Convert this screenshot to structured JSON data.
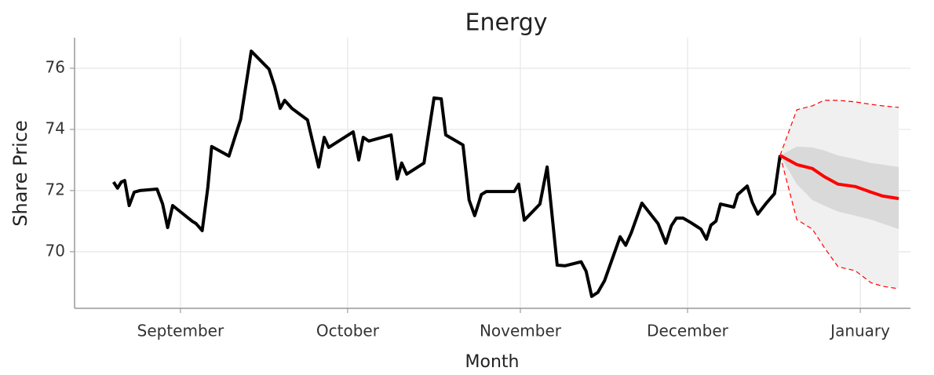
{
  "chart_data": {
    "type": "line",
    "title": "Energy",
    "x_label": "Month",
    "y_label": "Share Price",
    "xlim": [
      -19,
      131
    ],
    "ylim": [
      68.15,
      77
    ],
    "xticks": [
      {
        "value": 0,
        "label": "September"
      },
      {
        "value": 30,
        "label": "October"
      },
      {
        "value": 61,
        "label": "November"
      },
      {
        "value": 91,
        "label": "December"
      },
      {
        "value": 122,
        "label": "January"
      }
    ],
    "yticks": [
      70,
      72,
      74,
      76
    ],
    "grid": true,
    "history": {
      "color": "#000000",
      "x": [
        -12,
        -11.3,
        -10.6,
        -10,
        -9.2,
        -8.3,
        -7.3,
        -4.2,
        -3.2,
        -2.3,
        -1.4,
        2.1,
        2.8,
        3.9,
        4.9,
        5.6,
        8.7,
        9.9,
        10.8,
        12.7,
        15.9,
        16.9,
        17.9,
        18.7,
        20,
        22.8,
        24.8,
        25.8,
        26.6,
        31,
        32,
        32.8,
        33.8,
        37.8,
        38.9,
        39.7,
        40.6,
        43.7,
        45.5,
        46.8,
        47.6,
        50.7,
        51.8,
        52.8,
        54,
        54.9,
        59.9,
        60.7,
        61.7,
        64.5,
        65.8,
        67.6,
        69,
        71.9,
        72.8,
        73.8,
        74.9,
        76.1,
        78.9,
        79.9,
        80.9,
        82.8,
        85.7,
        87.1,
        88.1,
        89,
        90.2,
        91.6,
        93.4,
        94.4,
        95.2,
        96.1,
        96.9,
        99.3,
        100,
        101.7,
        102.6,
        103.6,
        105,
        106.6,
        107.6
      ],
      "values": [
        72.28,
        72.08,
        72.28,
        72.33,
        71.51,
        71.95,
        72,
        72.05,
        71.56,
        70.79,
        71.51,
        71,
        70.92,
        70.69,
        72.08,
        73.44,
        73.13,
        73.82,
        74.33,
        76.56,
        75.97,
        75.41,
        74.69,
        74.95,
        74.69,
        74.31,
        72.77,
        73.74,
        73.41,
        73.92,
        73,
        73.74,
        73.62,
        73.82,
        72.38,
        72.9,
        72.54,
        72.9,
        75.03,
        75,
        73.82,
        73.49,
        71.69,
        71.18,
        71.87,
        71.97,
        71.97,
        72.21,
        71.03,
        71.56,
        72.77,
        69.56,
        69.54,
        69.67,
        69.36,
        68.54,
        68.67,
        69.05,
        70.49,
        70.21,
        70.62,
        71.59,
        70.92,
        70.28,
        70.85,
        71.1,
        71.1,
        70.95,
        70.74,
        70.41,
        70.87,
        71,
        71.56,
        71.46,
        71.87,
        72.15,
        71.62,
        71.23,
        71.56,
        71.9,
        73.15
      ]
    },
    "forecast": {
      "color": "#ff0000",
      "inner_color": "#d9d9d9",
      "outer_color": "#f0f0f0",
      "x": [
        107.6,
        110.6,
        113.4,
        115.5,
        118,
        121.1,
        123.9,
        126,
        128.9
      ],
      "values": [
        73.15,
        72.85,
        72.72,
        72.46,
        72.21,
        72.13,
        71.95,
        71.82,
        71.74
      ],
      "inner_upper": [
        73.15,
        73.44,
        73.41,
        73.31,
        73.15,
        73.03,
        72.9,
        72.85,
        72.77
      ],
      "inner_lower": [
        73.15,
        72.21,
        71.69,
        71.51,
        71.31,
        71.18,
        71.05,
        70.92,
        70.74
      ],
      "outer_upper": [
        73.15,
        74.64,
        74.77,
        74.95,
        74.95,
        74.9,
        74.82,
        74.77,
        74.72
      ],
      "outer_lower": [
        73.15,
        71.05,
        70.74,
        70.15,
        69.51,
        69.38,
        68.99,
        68.87,
        68.79
      ]
    }
  }
}
